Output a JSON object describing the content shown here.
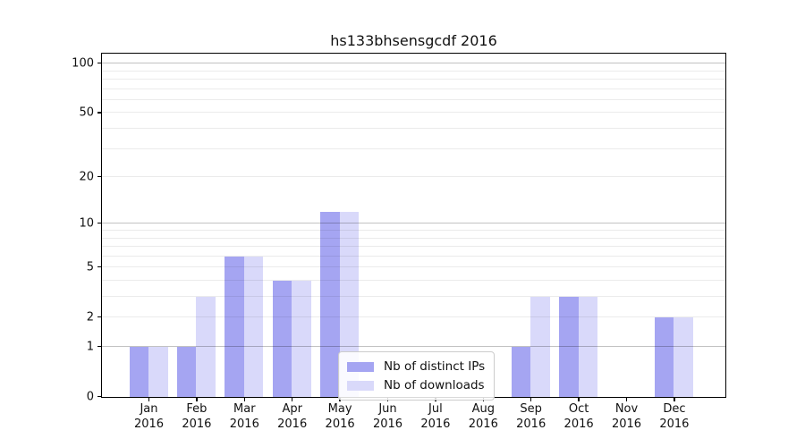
{
  "title": "hs133bhsensgcdf 2016",
  "chart_data": {
    "type": "bar",
    "title": "hs133bhsensgcdf 2016",
    "categories": [
      "Jan",
      "Feb",
      "Mar",
      "Apr",
      "May",
      "Jun",
      "Jul",
      "Aug",
      "Sep",
      "Oct",
      "Nov",
      "Dec"
    ],
    "year_label": "2016",
    "series": [
      {
        "name": "Nb of distinct IPs",
        "color": "#a5a5f2",
        "values": [
          1,
          1,
          6,
          4,
          12,
          0,
          0,
          0,
          1,
          3,
          0,
          2
        ]
      },
      {
        "name": "Nb of downloads",
        "color": "#d9d9fa",
        "values": [
          1,
          3,
          6,
          4,
          12,
          0,
          0,
          0,
          3,
          3,
          0,
          2
        ]
      }
    ],
    "yscale": "log1p",
    "yticks": [
      0,
      1,
      2,
      5,
      10,
      20,
      50,
      100
    ],
    "ytick_labels": [
      "0",
      "1",
      "2",
      "5",
      "10",
      "20",
      "50",
      "100"
    ],
    "minor_grid_values": [
      2,
      3,
      4,
      5,
      6,
      7,
      8,
      9,
      20,
      30,
      40,
      50,
      60,
      70,
      80,
      90
    ],
    "major_grid_values": [
      1,
      10,
      100
    ],
    "ylim": [
      0,
      113
    ],
    "grid": "horizontal",
    "legend_position": "lower center"
  },
  "legend": {
    "items": [
      {
        "label": "Nb of distinct IPs",
        "color": "#a5a5f2"
      },
      {
        "label": "Nb of downloads",
        "color": "#d9d9fa"
      }
    ]
  },
  "colors": {
    "bar_distinct_ips": "#a5a5f2",
    "bar_downloads": "#d9d9fa",
    "spine": "#000000",
    "grid_minor": "rgba(0,0,0,0.08)",
    "grid_major": "rgba(0,0,0,0.24)",
    "text": "#111111",
    "legend_border": "#cccccc"
  }
}
